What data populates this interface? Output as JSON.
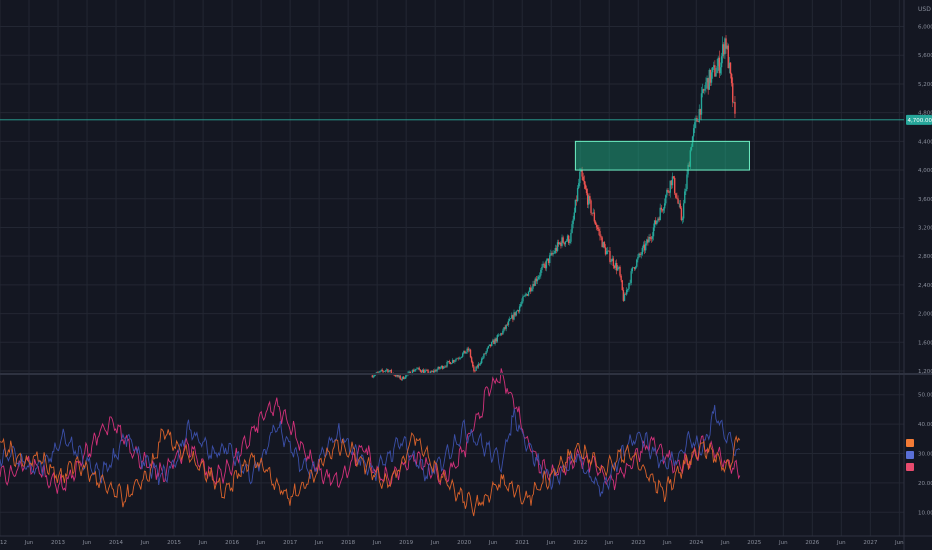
{
  "colors": {
    "background": "#141722",
    "grid": "#232733",
    "pane_divider": "#2e3240",
    "up_candle": "#26a69a",
    "down_candle": "#ef5350",
    "last_price_line": "#2aa99a",
    "zone_fill": "#1fbf8f",
    "zone_border": "#6ff0c4",
    "osc_purple": "#d2317a",
    "osc_blue": "#3b4fa8",
    "osc_orange": "#d9622b",
    "badge_orange": "#f37b36",
    "badge_blue": "#5a6fd6",
    "badge_red": "#e84b6e"
  },
  "top_axis_label": "USD",
  "price_axis_labels": [
    "6,000.00",
    "5,600.00",
    "5,200.00",
    "4,800.00",
    "4,400.00",
    "4,000.00",
    "3,600.00",
    "3,200.00",
    "2,800.00",
    "2,400.00",
    "2,000.00",
    "1,600.00",
    "1,200.00"
  ],
  "price_badge": "4,700.00",
  "osc_axis_labels": [
    "50.0000",
    "40.0000",
    "30.0000",
    "20.0000",
    "10.0000"
  ],
  "time_axis_labels": [
    "2012",
    "Jun",
    "2013",
    "Jun",
    "2014",
    "Jun",
    "2015",
    "Jun",
    "2016",
    "Jun",
    "2017",
    "Jun",
    "2018",
    "Jun",
    "2019",
    "Jun",
    "2020",
    "Jun",
    "2021",
    "Jun",
    "2022",
    "Jun",
    "2023",
    "Jun",
    "2024",
    "Jun",
    "2025",
    "Jun",
    "2026",
    "Jun",
    "2027",
    "Jun"
  ],
  "chart_data": {
    "type": "line",
    "panes": [
      {
        "name": "price",
        "style": "candlestick",
        "ylim": [
          1200,
          6300
        ],
        "x_range": [
          "2018-06",
          "2024-10"
        ],
        "close_series": [
          [
            "2018-06",
            1140
          ],
          [
            "2018-09",
            1220
          ],
          [
            "2018-12",
            1090
          ],
          [
            "2019-03",
            1230
          ],
          [
            "2019-06",
            1170
          ],
          [
            "2019-09",
            1280
          ],
          [
            "2019-12",
            1400
          ],
          [
            "2020-02",
            1500
          ],
          [
            "2020-03",
            1180
          ],
          [
            "2020-06",
            1520
          ],
          [
            "2020-09",
            1750
          ],
          [
            "2020-12",
            2050
          ],
          [
            "2021-03",
            2400
          ],
          [
            "2021-06",
            2700
          ],
          [
            "2021-09",
            3000
          ],
          [
            "2021-11",
            3050
          ],
          [
            "2022-01",
            3950
          ],
          [
            "2022-03",
            3500
          ],
          [
            "2022-06",
            2900
          ],
          [
            "2022-09",
            2600
          ],
          [
            "2022-10",
            2180
          ],
          [
            "2022-12",
            2650
          ],
          [
            "2023-03",
            3000
          ],
          [
            "2023-06",
            3500
          ],
          [
            "2023-08",
            3900
          ],
          [
            "2023-10",
            3300
          ],
          [
            "2023-12",
            4400
          ],
          [
            "2024-03",
            5200
          ],
          [
            "2024-06",
            5500
          ],
          [
            "2024-07",
            5850
          ],
          [
            "2024-08",
            5300
          ],
          [
            "2024-09",
            4700
          ]
        ],
        "last_price": 4700,
        "zone": {
          "from": "2021-12",
          "to": "2024-12",
          "low": 4000,
          "high": 4400
        }
      },
      {
        "name": "oscillator",
        "ylim": [
          5,
          55
        ],
        "series": [
          {
            "key": "purple",
            "values": [
              24,
              22,
              27,
              25,
              21,
              19,
              24,
              31,
              37,
              40,
              35,
              29,
              25,
              23,
              28,
              33,
              27,
              22,
              24,
              29,
              36,
              43,
              46,
              41,
              33,
              26,
              22,
              20,
              26,
              33,
              24,
              21,
              25,
              29,
              26,
              22,
              24,
              31,
              41,
              52,
              56,
              48,
              35,
              27,
              23,
              25,
              29,
              27,
              23,
              21,
              25,
              31,
              34,
              29,
              25,
              28,
              33,
              31,
              26,
              24
            ]
          },
          {
            "key": "blue",
            "values": [
              28,
              30,
              26,
              24,
              29,
              35,
              31,
              26,
              23,
              28,
              36,
              30,
              25,
              22,
              27,
              39,
              34,
              29,
              33,
              27,
              23,
              29,
              40,
              33,
              26,
              24,
              31,
              37,
              32,
              27,
              24,
              29,
              35,
              28,
              23,
              26,
              32,
              38,
              35,
              31,
              27,
              43,
              34,
              26,
              21,
              24,
              29,
              22,
              18,
              24,
              33,
              37,
              31,
              26,
              29,
              35,
              31,
              44,
              36,
              29
            ]
          },
          {
            "key": "orange",
            "values": [
              33,
              30,
              27,
              29,
              25,
              22,
              27,
              24,
              20,
              17,
              15,
              19,
              24,
              37,
              33,
              29,
              25,
              21,
              16,
              23,
              28,
              26,
              20,
              15,
              18,
              23,
              29,
              33,
              31,
              27,
              23,
              20,
              26,
              37,
              29,
              23,
              19,
              14,
              12,
              16,
              21,
              17,
              14,
              19,
              23,
              27,
              31,
              29,
              25,
              27,
              31,
              26,
              21,
              17,
              23,
              28,
              33,
              29,
              25,
              36
            ]
          }
        ]
      }
    ]
  }
}
